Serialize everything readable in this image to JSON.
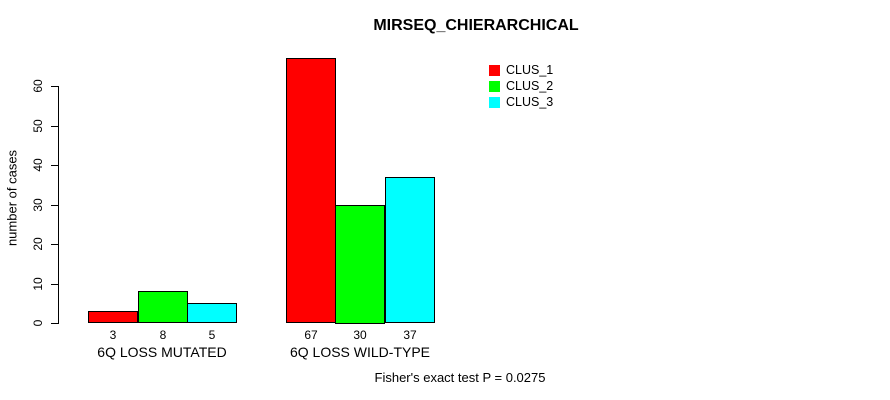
{
  "chart_data": {
    "type": "bar",
    "title": "MIRSEQ_CHIERARCHICAL",
    "xlabel": "",
    "ylabel": "number of cases",
    "categories": [
      "6Q LOSS MUTATED",
      "6Q LOSS WILD-TYPE"
    ],
    "series": [
      {
        "name": "CLUS_1",
        "color": "#FF0000",
        "values": [
          3,
          67
        ]
      },
      {
        "name": "CLUS_2",
        "color": "#00FF00",
        "values": [
          8,
          30
        ]
      },
      {
        "name": "CLUS_3",
        "color": "#00FFFF",
        "values": [
          5,
          37
        ]
      }
    ],
    "bar_value_labels": [
      [
        "3",
        "8",
        "5"
      ],
      [
        "67",
        "30",
        "37"
      ]
    ],
    "yticks": [
      0,
      10,
      20,
      30,
      40,
      50,
      60
    ],
    "ylim": [
      0,
      60
    ],
    "grid": false,
    "legend_position": "top-right",
    "annotation": "Fisher's exact test P = 0.0275"
  }
}
